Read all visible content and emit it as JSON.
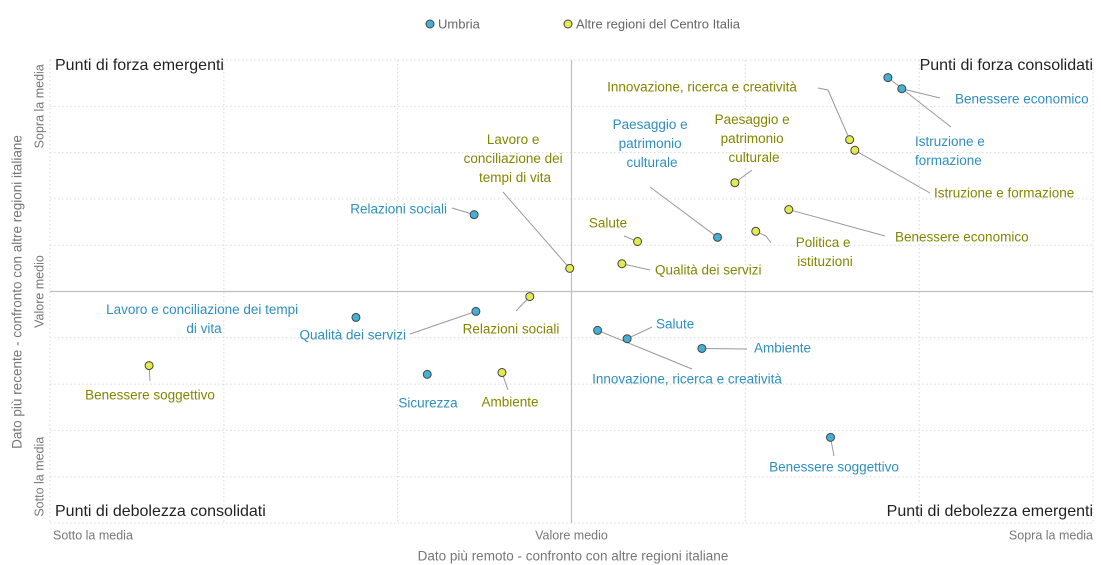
{
  "chart_data": {
    "type": "scatter",
    "xlabel": "Dato più remoto - confronto con altre regioni italiane",
    "ylabel": "Dato più recente - confronto con altre regioni italiane",
    "xlim": [
      -3,
      3
    ],
    "ylim": [
      -5,
      5
    ],
    "xticks": [
      {
        "value": -3,
        "label": "Sotto la media"
      },
      {
        "value": 0,
        "label": "Valore medio"
      },
      {
        "value": 3,
        "label": "Sopra la media"
      }
    ],
    "yticks": [
      {
        "value": -4,
        "label": "Sotto la media"
      },
      {
        "value": 0,
        "label": "Valore medio"
      },
      {
        "value": 4,
        "label": "Sopra la media"
      }
    ],
    "xminor": [
      -2,
      -1,
      1,
      2
    ],
    "yminor": [
      -5,
      -3,
      -2,
      -1,
      1,
      2,
      3,
      5
    ],
    "grid": true,
    "legend": "top",
    "quadrants": [
      "Punti di forza emergenti",
      "Punti di forza consolidati",
      "Punti di debolezza consolidati",
      "Punti di debolezza emergenti"
    ],
    "series": [
      {
        "name": "Umbria",
        "color": "#45b0d6",
        "label_color": "#2e8fbf",
        "labels": [
          "Benessere economico",
          "Istruzione e formazione",
          "Paesaggio e patrimonio culturale",
          "Relazioni sociali",
          "Lavoro e conciliazione dei tempi di vita",
          "Qualità dei servizi",
          "Sicurezza",
          "Innovazione, ricerca e creatività",
          "Salute",
          "Ambiente",
          "Benessere soggettivo"
        ],
        "x": [
          1.9,
          1.82,
          0.84,
          -0.56,
          -1.24,
          -0.55,
          -0.83,
          0.15,
          0.32,
          0.75,
          1.49
        ],
        "values": [
          4.38,
          4.62,
          1.17,
          1.66,
          -0.56,
          -0.43,
          -1.79,
          -0.84,
          -1.02,
          -1.23,
          -3.15
        ]
      },
      {
        "name": "Altre regioni del Centro Italia",
        "color": "#e3ec4c",
        "label_color": "#858500",
        "labels": [
          "Innovazione, ricerca e creatività",
          "Istruzione e formazione",
          "Paesaggio e patrimonio culturale",
          "Benessere economico",
          "Politica e istituzioni",
          "Salute",
          "Qualità dei servizi",
          "Lavoro e conciliazione dei tempi di vita",
          "Relazioni sociali",
          "Benessere soggettivo",
          "Ambiente"
        ],
        "x": [
          1.6,
          1.63,
          0.94,
          1.25,
          1.06,
          0.38,
          0.29,
          -0.01,
          -0.24,
          -2.43,
          -0.4
        ],
        "values": [
          3.28,
          3.05,
          2.35,
          1.77,
          1.3,
          1.08,
          0.6,
          0.5,
          -0.11,
          -1.6,
          -1.75
        ]
      }
    ]
  }
}
